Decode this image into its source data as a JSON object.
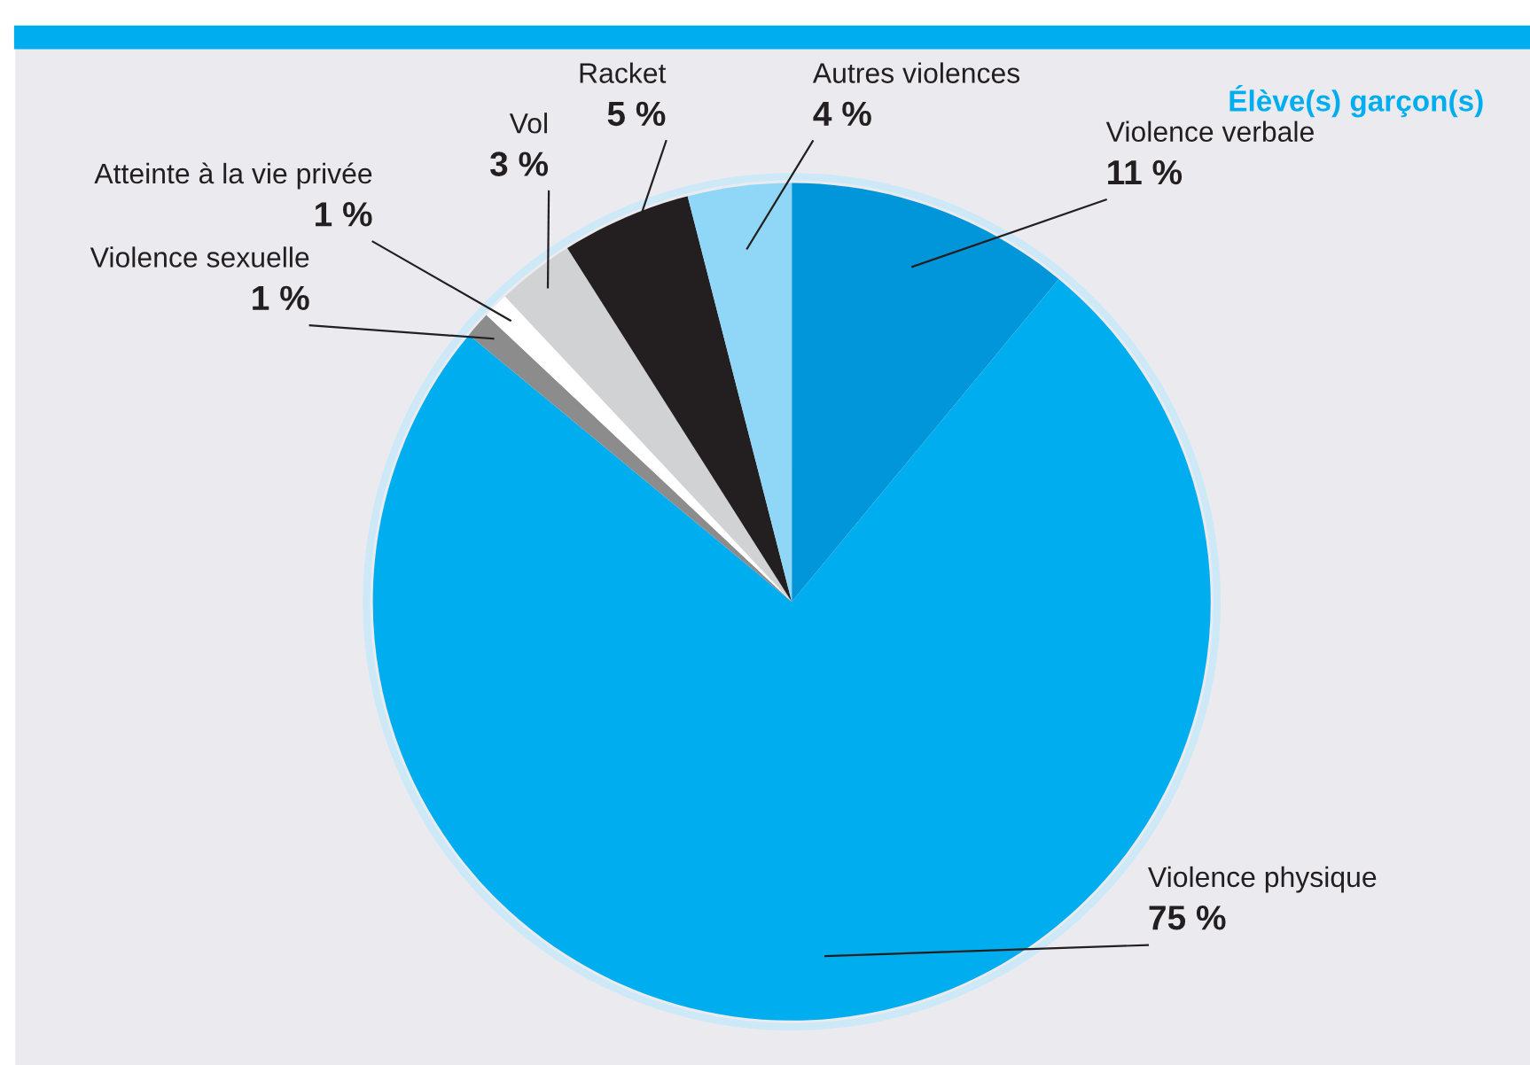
{
  "chart_data": {
    "type": "pie",
    "title": "Élève(s) garçon(s)",
    "categories": [
      "Violence verbale",
      "Violence physique",
      "Violence sexuelle",
      "Atteinte à la vie privée",
      "Vol",
      "Racket",
      "Autres violences"
    ],
    "values": [
      11,
      75,
      1,
      1,
      3,
      5,
      4
    ],
    "colors": [
      "#0096d9",
      "#00aeef",
      "#8c8c8c",
      "#ffffff",
      "#d1d2d4",
      "#231f20",
      "#8fd6f7"
    ],
    "value_labels": [
      "11 %",
      "75 %",
      "1 %",
      "1 %",
      "3 %",
      "5 %",
      "4 %"
    ],
    "legend": false
  }
}
